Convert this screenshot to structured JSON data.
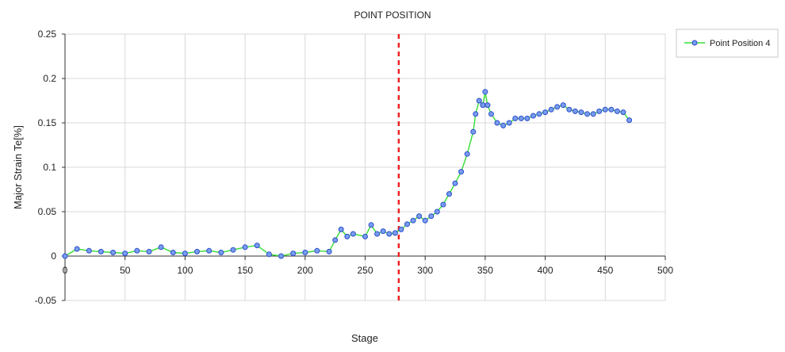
{
  "chart_data": {
    "type": "line",
    "title": "POINT POSITION",
    "xlabel": "Stage",
    "ylabel": "Major Strain Te[%]",
    "xlim": [
      0,
      500
    ],
    "ylim": [
      -0.05,
      0.25
    ],
    "xticks": [
      0,
      50,
      100,
      150,
      200,
      250,
      300,
      350,
      400,
      450,
      500
    ],
    "yticks": [
      -0.05,
      0,
      0.05,
      0.1,
      0.15,
      0.2,
      0.25
    ],
    "xtick_labels": [
      "0",
      "50",
      "100",
      "150",
      "200",
      "250",
      "300",
      "350",
      "400",
      "450",
      "500"
    ],
    "ytick_labels": [
      "-0.05",
      "0",
      "0.05",
      "0.1",
      "0.15",
      "0.2",
      "0.25"
    ],
    "grid": true,
    "legend_position": "right",
    "reference_line": {
      "x": 278,
      "color": "#ee2222",
      "style": "dashed"
    },
    "series": [
      {
        "name": "Point Position 4",
        "line_color": "#33dd33",
        "marker_fill": "#7a9cee",
        "marker_edge": "#2a4fc8",
        "x": [
          0,
          10,
          20,
          30,
          40,
          50,
          60,
          70,
          80,
          90,
          100,
          110,
          120,
          130,
          140,
          150,
          160,
          170,
          180,
          190,
          200,
          210,
          220,
          225,
          230,
          235,
          240,
          250,
          255,
          260,
          265,
          270,
          275,
          280,
          285,
          290,
          295,
          300,
          305,
          310,
          315,
          320,
          325,
          330,
          335,
          340,
          342,
          345,
          348,
          350,
          352,
          355,
          360,
          365,
          370,
          375,
          380,
          385,
          390,
          395,
          400,
          405,
          410,
          415,
          420,
          425,
          430,
          435,
          440,
          445,
          450,
          455,
          460,
          465,
          470
        ],
        "y": [
          0.0,
          0.008,
          0.006,
          0.005,
          0.004,
          0.003,
          0.006,
          0.005,
          0.01,
          0.004,
          0.003,
          0.005,
          0.006,
          0.004,
          0.007,
          0.01,
          0.012,
          0.002,
          0.0,
          0.003,
          0.004,
          0.006,
          0.005,
          0.018,
          0.03,
          0.022,
          0.025,
          0.022,
          0.035,
          0.025,
          0.028,
          0.025,
          0.026,
          0.03,
          0.036,
          0.04,
          0.045,
          0.04,
          0.045,
          0.05,
          0.058,
          0.07,
          0.082,
          0.095,
          0.115,
          0.14,
          0.16,
          0.175,
          0.17,
          0.185,
          0.17,
          0.16,
          0.15,
          0.147,
          0.15,
          0.155,
          0.155,
          0.155,
          0.158,
          0.16,
          0.162,
          0.165,
          0.168,
          0.17,
          0.165,
          0.163,
          0.162,
          0.16,
          0.16,
          0.163,
          0.165,
          0.165,
          0.163,
          0.162,
          0.153
        ]
      }
    ]
  }
}
